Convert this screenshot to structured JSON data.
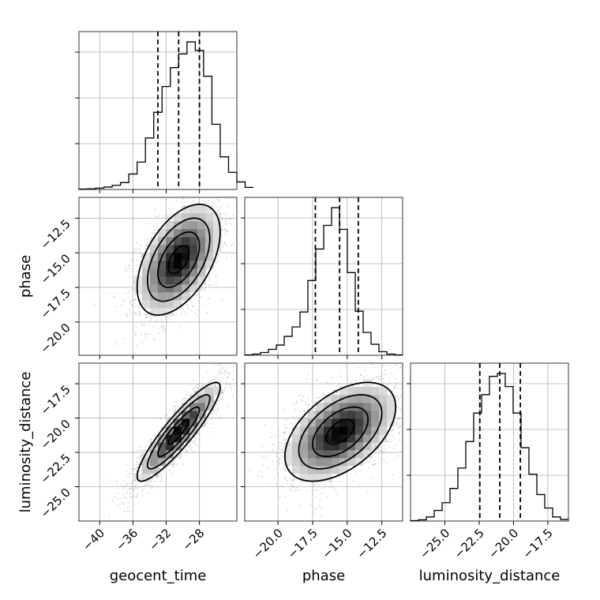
{
  "chart_data": {
    "type": "corner",
    "parameters": [
      "geocent_time",
      "phase",
      "luminosity_distance"
    ],
    "ranges": {
      "geocent_time": [
        -42.5,
        -23.5
      ],
      "phase": [
        -22.4,
        -11.0
      ],
      "luminosity_distance": [
        -27.5,
        -16.0
      ]
    },
    "ticks": {
      "geocent_time": [
        -40,
        -36,
        -32,
        -28
      ],
      "phase": [
        -20.0,
        -17.5,
        -15.0,
        -12.5
      ],
      "luminosity_distance": [
        -25.0,
        -22.5,
        -20.0,
        -17.5
      ]
    },
    "tick_labels": {
      "geocent_time": [
        "−40",
        "−36",
        "−32",
        "−28"
      ],
      "phase": [
        "−20.0",
        "−17.5",
        "−15.0",
        "−12.5"
      ],
      "luminosity_distance": [
        "−25.0",
        "−22.5",
        "−20.0",
        "−17.5"
      ]
    },
    "histograms": {
      "geocent_time": {
        "bin_start": -42.5,
        "bin_width": 1.0,
        "counts": [
          1,
          2,
          4,
          7,
          12,
          20,
          45,
          80,
          150,
          225,
          300,
          355,
          395,
          430,
          405,
          330,
          190,
          95,
          50,
          22,
          6
        ],
        "quantiles": [
          -33.0,
          -30.5,
          -28.0
        ]
      },
      "phase": {
        "bin_start": -22.4,
        "bin_width": 0.57,
        "counts": [
          1,
          3,
          7,
          15,
          26,
          48,
          72,
          110,
          190,
          270,
          330,
          375,
          320,
          210,
          112,
          58,
          28,
          9,
          3,
          1
        ],
        "quantiles": [
          -17.3,
          -15.55,
          -14.2
        ]
      },
      "luminosity_distance": {
        "bin_start": -27.5,
        "bin_width": 0.575,
        "counts": [
          1,
          3,
          10,
          26,
          45,
          80,
          130,
          195,
          265,
          310,
          355,
          362,
          330,
          265,
          180,
          115,
          65,
          32,
          10,
          4
        ],
        "quantiles": [
          -22.45,
          -21.0,
          -19.5
        ]
      }
    },
    "density_2d": [
      {
        "x": "geocent_time",
        "y": "phase",
        "mean": [
          -30.5,
          -15.5
        ],
        "sd": [
          2.5,
          2.0
        ],
        "corr": 0.5
      },
      {
        "x": "geocent_time",
        "y": "luminosity_distance",
        "mean": [
          -30.5,
          -21.0
        ],
        "sd": [
          2.5,
          1.8
        ],
        "corr": 0.9
      },
      {
        "x": "phase",
        "y": "luminosity_distance",
        "mean": [
          -15.5,
          -21.0
        ],
        "sd": [
          2.0,
          1.8
        ],
        "corr": 0.5
      }
    ],
    "contour_levels_sigma": [
      0.5,
      1.0,
      1.5,
      2.0
    ],
    "grid": true
  }
}
